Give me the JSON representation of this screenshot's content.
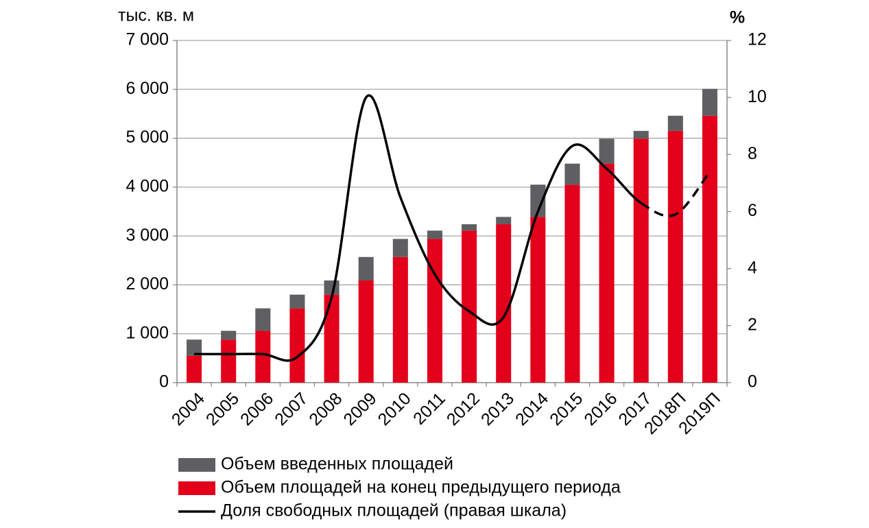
{
  "chart_data": {
    "type": "stacked_bar_line",
    "y_label": "тыс. кв. м",
    "y2_label": "%",
    "categories": [
      "2004",
      "2005",
      "2006",
      "2007",
      "2008",
      "2009",
      "2010",
      "2011",
      "2012",
      "2013",
      "2014",
      "2015",
      "2016",
      "2017",
      "2018П",
      "2019П"
    ],
    "series": [
      {
        "name": "Объем введенных площадей",
        "color": "#5f5f62",
        "type": "bar",
        "values": [
          330,
          180,
          460,
          280,
          290,
          480,
          370,
          170,
          130,
          150,
          660,
          430,
          510,
          160,
          310,
          550
        ]
      },
      {
        "name": "Объем площадей на конец предыдущего периода",
        "color": "#e3001b",
        "type": "bar",
        "values": [
          550,
          880,
          1060,
          1520,
          1800,
          2090,
          2570,
          2940,
          3110,
          3240,
          3390,
          4050,
          4480,
          4990,
          5150,
          5460
        ]
      },
      {
        "name": "Доля свободных площадей (правая шкала)",
        "color": "#000000",
        "type": "line",
        "axis": "y2",
        "dashed_from_category": "2017",
        "values": [
          1.0,
          1.0,
          1.0,
          0.9,
          3.0,
          10.0,
          6.5,
          3.8,
          2.5,
          2.3,
          6.0,
          8.3,
          7.5,
          6.3,
          5.9,
          7.4
        ]
      }
    ],
    "ylim": [
      0,
      7000
    ],
    "yticks": [
      0,
      {
        "value": 1000,
        "label": "1 000"
      },
      {
        "value": 2000,
        "label": "2 000"
      },
      {
        "value": 3000,
        "label": "3 000"
      },
      {
        "value": 4000,
        "label": "4 000"
      },
      {
        "value": 5000,
        "label": "5 000"
      },
      {
        "value": 6000,
        "label": "6 000"
      },
      {
        "value": 7000,
        "label": "7 000"
      }
    ],
    "y2lim": [
      0,
      12
    ],
    "y2ticks": [
      0,
      2,
      4,
      6,
      8,
      10,
      12
    ],
    "grid": true
  }
}
